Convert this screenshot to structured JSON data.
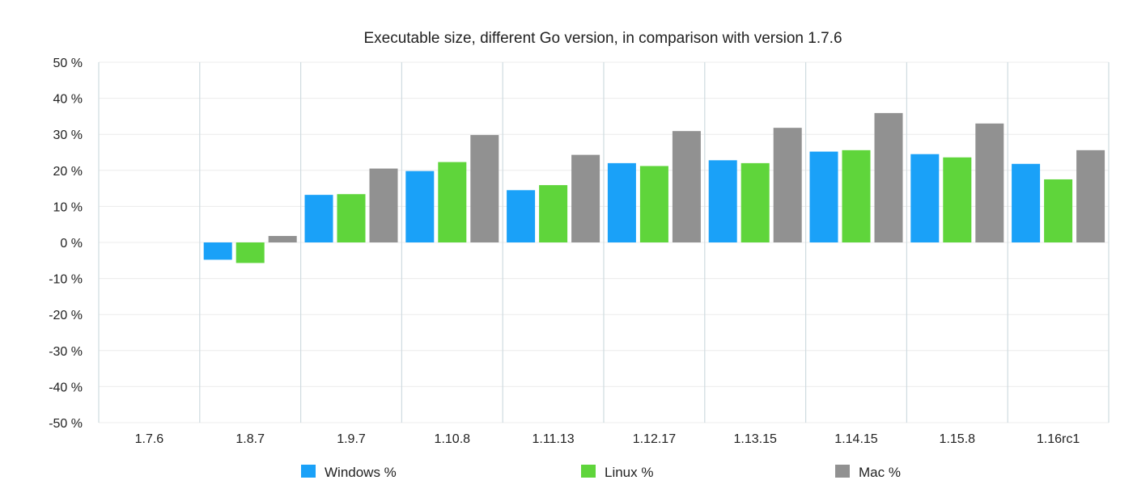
{
  "chart_data": {
    "type": "bar",
    "title": "Executable size, different Go version, in comparison with version 1.7.6",
    "xlabel": "",
    "ylabel": "",
    "ylim": [
      -50,
      50
    ],
    "y_ticks": [
      50,
      40,
      30,
      20,
      10,
      0,
      -10,
      -20,
      -30,
      -40,
      -50
    ],
    "y_tick_labels": [
      "50 %",
      "40 %",
      "30 %",
      "20 %",
      "10 %",
      "0 %",
      "-10 %",
      "-20 %",
      "-30 %",
      "-40 %",
      "-50 %"
    ],
    "categories": [
      "1.7.6",
      "1.8.7",
      "1.9.7",
      "1.10.8",
      "1.11.13",
      "1.12.17",
      "1.13.15",
      "1.14.15",
      "1.15.8",
      "1.16rc1"
    ],
    "series": [
      {
        "name": "Windows %",
        "color": "#1aa1f8",
        "values": [
          0,
          -4.8,
          13.2,
          19.8,
          14.5,
          22,
          22.8,
          25.2,
          24.5,
          21.8
        ]
      },
      {
        "name": "Linux %",
        "color": "#5fd53b",
        "values": [
          0,
          -5.7,
          13.4,
          22.3,
          15.9,
          21.2,
          22,
          25.6,
          23.6,
          17.5
        ]
      },
      {
        "name": "Mac %",
        "color": "#919191",
        "values": [
          0,
          1.8,
          20.5,
          29.8,
          24.3,
          30.9,
          31.8,
          35.9,
          33,
          25.6
        ]
      }
    ],
    "grid": true,
    "legend_position": "bottom"
  }
}
